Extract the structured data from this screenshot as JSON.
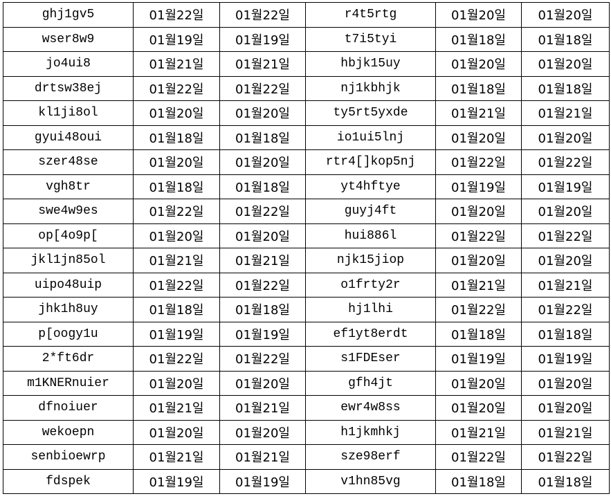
{
  "rows": [
    [
      "ghj1gv5",
      "01월22일",
      "01월22일",
      "r4t5rtg",
      "01월20일",
      "01월20일"
    ],
    [
      "wser8w9",
      "01월19일",
      "01월19일",
      "t7i5tyi",
      "01월18일",
      "01월18일"
    ],
    [
      "jo4ui8",
      "01월21일",
      "01월21일",
      "hbjk15uy",
      "01월20일",
      "01월20일"
    ],
    [
      "drtsw38ej",
      "01월22일",
      "01월22일",
      "nj1kbhjk",
      "01월18일",
      "01월18일"
    ],
    [
      "kl1ji8ol",
      "01월20일",
      "01월20일",
      "ty5rt5yxde",
      "01월21일",
      "01월21일"
    ],
    [
      "gyui48oui",
      "01월18일",
      "01월18일",
      "io1ui5lnj",
      "01월20일",
      "01월20일"
    ],
    [
      "szer48se",
      "01월20일",
      "01월20일",
      "rtr4[]kop5nj",
      "01월22일",
      "01월22일"
    ],
    [
      "vgh8tr",
      "01월18일",
      "01월18일",
      "yt4hftye",
      "01월19일",
      "01월19일"
    ],
    [
      "swe4w9es",
      "01월22일",
      "01월22일",
      "guyj4ft",
      "01월20일",
      "01월20일"
    ],
    [
      "op[4o9p[",
      "01월20일",
      "01월20일",
      "hui886l",
      "01월22일",
      "01월22일"
    ],
    [
      "jkl1jn85ol",
      "01월21일",
      "01월21일",
      "njk15jiop",
      "01월20일",
      "01월20일"
    ],
    [
      "uipo48uip",
      "01월22일",
      "01월22일",
      "o1frty2r",
      "01월21일",
      "01월21일"
    ],
    [
      "jhk1h8uy",
      "01월18일",
      "01월18일",
      "hj1lhi",
      "01월22일",
      "01월22일"
    ],
    [
      "p[oogy1u",
      "01월19일",
      "01월19일",
      "ef1yt8erdt",
      "01월18일",
      "01월18일"
    ],
    [
      "2*ft6dr",
      "01월22일",
      "01월22일",
      "s1FDEser",
      "01월19일",
      "01월19일"
    ],
    [
      "m1KNERnuier",
      "01월20일",
      "01월20일",
      "gfh4jt",
      "01월20일",
      "01월20일"
    ],
    [
      "dfnoiuer",
      "01월21일",
      "01월21일",
      "ewr4w8ss",
      "01월20일",
      "01월20일"
    ],
    [
      "wekoepn",
      "01월20일",
      "01월20일",
      "h1jkmhkj",
      "01월21일",
      "01월21일"
    ],
    [
      "senbioewrp",
      "01월21일",
      "01월21일",
      "sze98erf",
      "01월22일",
      "01월22일"
    ],
    [
      "fdspek",
      "01월19일",
      "01월19일",
      "v1hn85vg",
      "01월18일",
      "01월18일"
    ]
  ]
}
